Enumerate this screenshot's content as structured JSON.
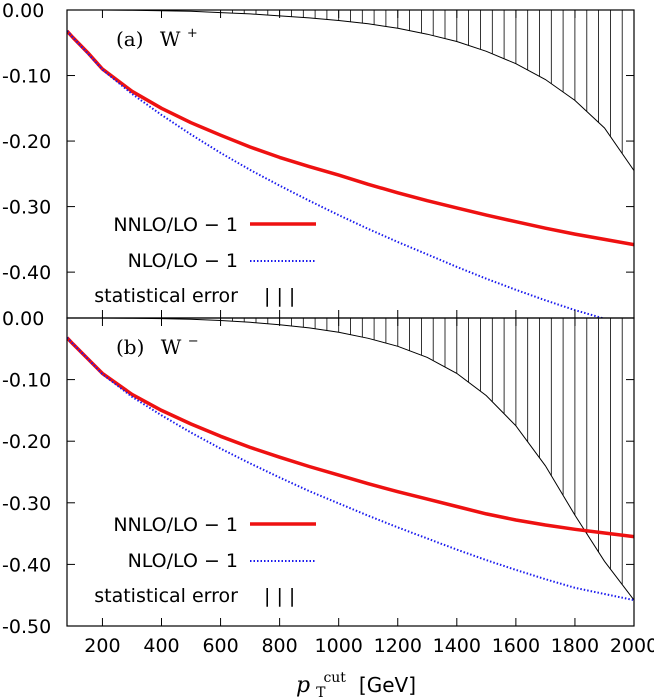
{
  "chart_data": {
    "type": "line",
    "xlabel_symbol": "p",
    "xlabel_sub": "T",
    "xlabel_sup": "cut",
    "xlabel_unit": "[GeV]",
    "xlim": [
      80,
      2000
    ],
    "x_ticks": [
      "200",
      "400",
      "600",
      "800",
      "1000",
      "1200",
      "1400",
      "1600",
      "1800",
      "2000"
    ],
    "x_tick_values": [
      200,
      400,
      600,
      800,
      1000,
      1200,
      1400,
      1600,
      1800,
      2000
    ],
    "x": [
      80,
      100,
      150,
      200,
      300,
      400,
      500,
      600,
      700,
      800,
      900,
      1000,
      1100,
      1200,
      1300,
      1400,
      1500,
      1600,
      1700,
      1800,
      1900,
      2000
    ],
    "colors": {
      "nnlo": "#ee1111",
      "nlo": "#1a1aee",
      "error": "#000000"
    },
    "panels": [
      {
        "label": "(a)",
        "boson": "W",
        "charge": "+",
        "ylim": [
          -0.47,
          0.0
        ],
        "y_ticks": [
          "0.00",
          "-0.10",
          "-0.20",
          "-0.30",
          "-0.40"
        ],
        "y_tick_values": [
          0.0,
          -0.1,
          -0.2,
          -0.3,
          -0.4
        ],
        "legend": [
          {
            "label": "NNLO/LO − 1",
            "style": "solid"
          },
          {
            "label": "NLO/LO − 1",
            "style": "dotted"
          },
          {
            "label": "statistical error",
            "style": "hatch",
            "symbol": "| | |"
          }
        ],
        "series": [
          {
            "name": "NNLO/LO − 1",
            "values": [
              -0.032,
              -0.042,
              -0.065,
              -0.09,
              -0.124,
              -0.15,
              -0.172,
              -0.191,
              -0.209,
              -0.225,
              -0.239,
              -0.252,
              -0.266,
              -0.279,
              -0.291,
              -0.302,
              -0.313,
              -0.323,
              -0.333,
              -0.342,
              -0.35,
              -0.358
            ]
          },
          {
            "name": "NLO/LO − 1",
            "values": [
              -0.032,
              -0.042,
              -0.066,
              -0.091,
              -0.128,
              -0.16,
              -0.19,
              -0.218,
              -0.244,
              -0.268,
              -0.291,
              -0.313,
              -0.334,
              -0.354,
              -0.373,
              -0.392,
              -0.41,
              -0.427,
              -0.443,
              -0.458,
              -0.471,
              -0.483
            ]
          }
        ],
        "error_band_lower": [
          0.0,
          0.0,
          0.0,
          0.0,
          -0.0005,
          -0.001,
          -0.002,
          -0.004,
          -0.006,
          -0.009,
          -0.012,
          -0.016,
          -0.021,
          -0.028,
          -0.037,
          -0.048,
          -0.063,
          -0.082,
          -0.106,
          -0.138,
          -0.18,
          -0.245
        ]
      },
      {
        "label": "(b)",
        "boson": "W",
        "charge": "−",
        "ylim": [
          -0.5,
          0.0
        ],
        "y_ticks": [
          "0.00",
          "-0.10",
          "-0.20",
          "-0.30",
          "-0.40",
          "-0.50"
        ],
        "y_tick_values": [
          0.0,
          -0.1,
          -0.2,
          -0.3,
          -0.4,
          -0.5
        ],
        "legend": [
          {
            "label": "NNLO/LO − 1",
            "style": "solid"
          },
          {
            "label": "NLO/LO − 1",
            "style": "dotted"
          },
          {
            "label": "statistical error",
            "style": "hatch",
            "symbol": "| | |"
          }
        ],
        "series": [
          {
            "name": "NNLO/LO − 1",
            "values": [
              -0.032,
              -0.042,
              -0.066,
              -0.09,
              -0.124,
              -0.15,
              -0.172,
              -0.192,
              -0.21,
              -0.226,
              -0.241,
              -0.255,
              -0.269,
              -0.282,
              -0.294,
              -0.306,
              -0.318,
              -0.328,
              -0.336,
              -0.343,
              -0.349,
              -0.355
            ]
          },
          {
            "name": "NLO/LO − 1",
            "values": [
              -0.032,
              -0.042,
              -0.066,
              -0.091,
              -0.128,
              -0.158,
              -0.186,
              -0.212,
              -0.236,
              -0.259,
              -0.281,
              -0.301,
              -0.321,
              -0.34,
              -0.358,
              -0.376,
              -0.393,
              -0.409,
              -0.424,
              -0.438,
              -0.448,
              -0.458
            ]
          }
        ],
        "error_band_lower": [
          0.0,
          0.0,
          0.0,
          0.0,
          -0.0005,
          -0.001,
          -0.002,
          -0.004,
          -0.007,
          -0.011,
          -0.016,
          -0.023,
          -0.033,
          -0.046,
          -0.064,
          -0.09,
          -0.126,
          -0.175,
          -0.24,
          -0.32,
          -0.395,
          -0.458
        ]
      }
    ]
  }
}
